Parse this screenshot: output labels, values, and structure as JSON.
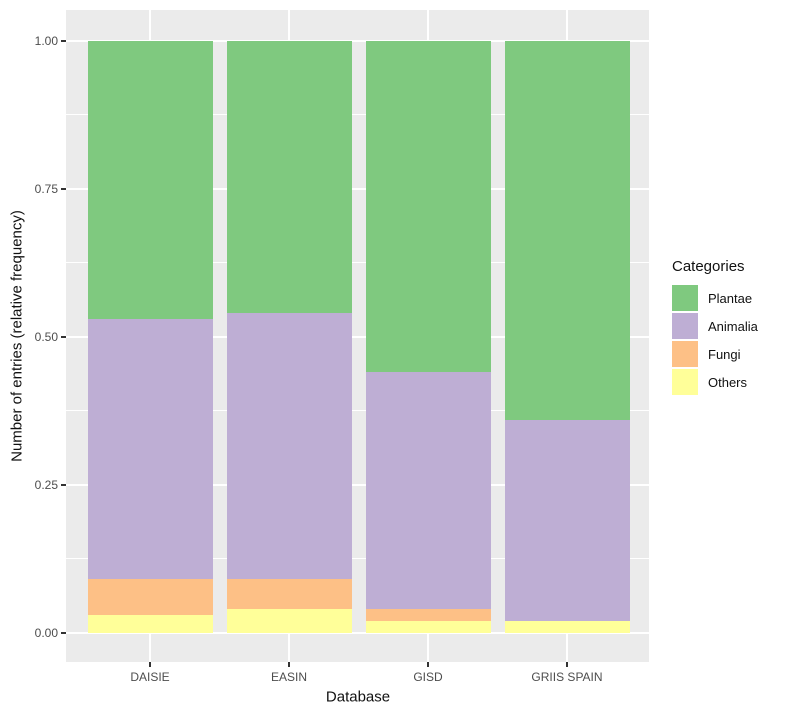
{
  "figure": {
    "y_axis_title": "Number of entries (relative frequency)",
    "x_axis_title": "Database",
    "legend_title": "Categories"
  },
  "chart_data": {
    "type": "bar",
    "stacked": true,
    "normalized": true,
    "title": "",
    "xlabel": "Database",
    "ylabel": "Number of entries (relative frequency)",
    "categories": [
      "DAISIE",
      "EASIN",
      "GISD",
      "GRIIS SPAIN"
    ],
    "series": [
      {
        "name": "Plantae",
        "color": "#7FC97F",
        "values": [
          0.47,
          0.46,
          0.56,
          0.64
        ]
      },
      {
        "name": "Animalia",
        "color": "#BEAED4",
        "values": [
          0.44,
          0.45,
          0.4,
          0.34
        ]
      },
      {
        "name": "Fungi",
        "color": "#FDC086",
        "values": [
          0.06,
          0.05,
          0.02,
          0.0
        ]
      },
      {
        "name": "Others",
        "color": "#FFFF99",
        "values": [
          0.03,
          0.04,
          0.02,
          0.02
        ]
      }
    ],
    "ylim": [
      0,
      1
    ],
    "yticks": [
      0.0,
      0.25,
      0.5,
      0.75,
      1.0
    ],
    "ytick_labels": [
      "0.00",
      "0.25",
      "0.50",
      "0.75",
      "1.00"
    ],
    "minor_yticks": [
      0.125,
      0.375,
      0.625,
      0.875
    ],
    "legend_title": "Categories",
    "legend_position": "right",
    "grid": true,
    "panel_background": "#EBEBEB",
    "grid_color": "#FFFFFF"
  }
}
